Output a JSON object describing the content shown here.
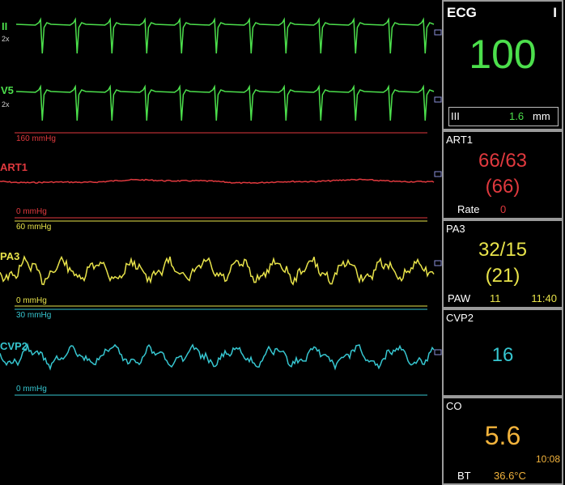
{
  "waveforms": {
    "ecg_ii": {
      "label": "II",
      "gain": "2x",
      "color": "#4cdf4c"
    },
    "ecg_v5": {
      "label": "V5",
      "gain": "2x",
      "color": "#4cdf4c"
    },
    "art1": {
      "label": "ART1",
      "scale_top": "160 mmHg",
      "scale_bottom": "0 mmHg",
      "color": "#e0393e"
    },
    "pa3": {
      "label": "PA3",
      "scale_top": "60 mmHg",
      "scale_bottom": "0 mmHg",
      "color": "#e8e34a"
    },
    "cvp2": {
      "label": "CVP2",
      "scale_top": "30 mmHg",
      "scale_bottom": "0 mmHg",
      "color": "#36c6d0"
    }
  },
  "panels": {
    "ecg": {
      "title": "ECG",
      "mode": "I",
      "hr": "100",
      "lead": "III",
      "size_value": "1.6",
      "size_unit": "mm"
    },
    "art1": {
      "title": "ART1",
      "systolic_diastolic": "66/63",
      "mean": "(66)",
      "rate_label": "Rate",
      "rate_value": "0"
    },
    "pa3": {
      "title": "PA3",
      "systolic_diastolic": "32/15",
      "mean": "(21)",
      "paw_label": "PAW",
      "paw_value": "11",
      "time": "11:40"
    },
    "cvp2": {
      "title": "CVP2",
      "value": "16"
    },
    "co": {
      "title": "CO",
      "value": "5.6",
      "time": "10:08",
      "bt_label": "BT",
      "bt_value": "36.6°C"
    }
  },
  "colors": {
    "ecg": "#4cdf4c",
    "art": "#e0393e",
    "pa": "#e8e34a",
    "cvp": "#36c6d0",
    "co": "#f2b33c",
    "panel_border": "#9a9a9a"
  }
}
